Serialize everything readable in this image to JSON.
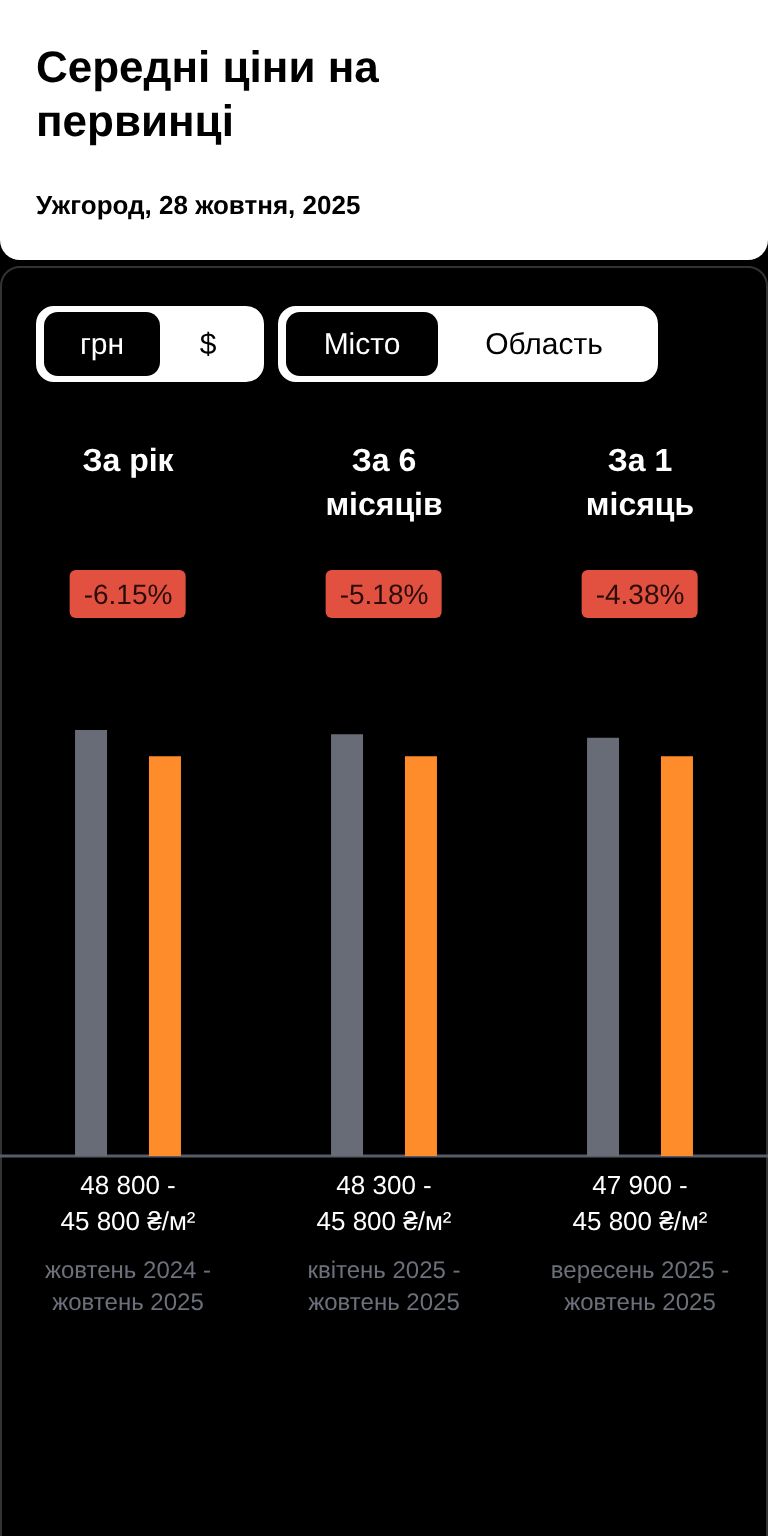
{
  "chart_data": {
    "type": "bar",
    "title": "Середні ціни на первинці",
    "subtitle": "Ужгород, 28 жовтня, 2025",
    "categories": [
      "За рік",
      "За 6 місяців",
      "За 1 місяць"
    ],
    "series": [
      {
        "color": "#676c76",
        "values": [
          48800,
          48300,
          47900
        ],
        "value_labels": [
          "48 800 -",
          "48 300 -",
          "47 900 -"
        ]
      },
      {
        "color": "#ff8c2a",
        "values": [
          45800,
          45800,
          45800
        ],
        "value_labels": [
          "45 800 ₴/м²",
          "45 800 ₴/м²",
          "45 800 ₴/м²"
        ]
      }
    ],
    "annotations": [
      "грн",
      "$",
      "Місто",
      "Область",
      "-6.15%",
      "-5.18%",
      "-4.38%",
      "жовтень 2024 - жовтень 2025",
      "квітень 2025 - жовтень 2025",
      "вересень 2025 - жовтень 2025"
    ],
    "grid": false
  }
}
